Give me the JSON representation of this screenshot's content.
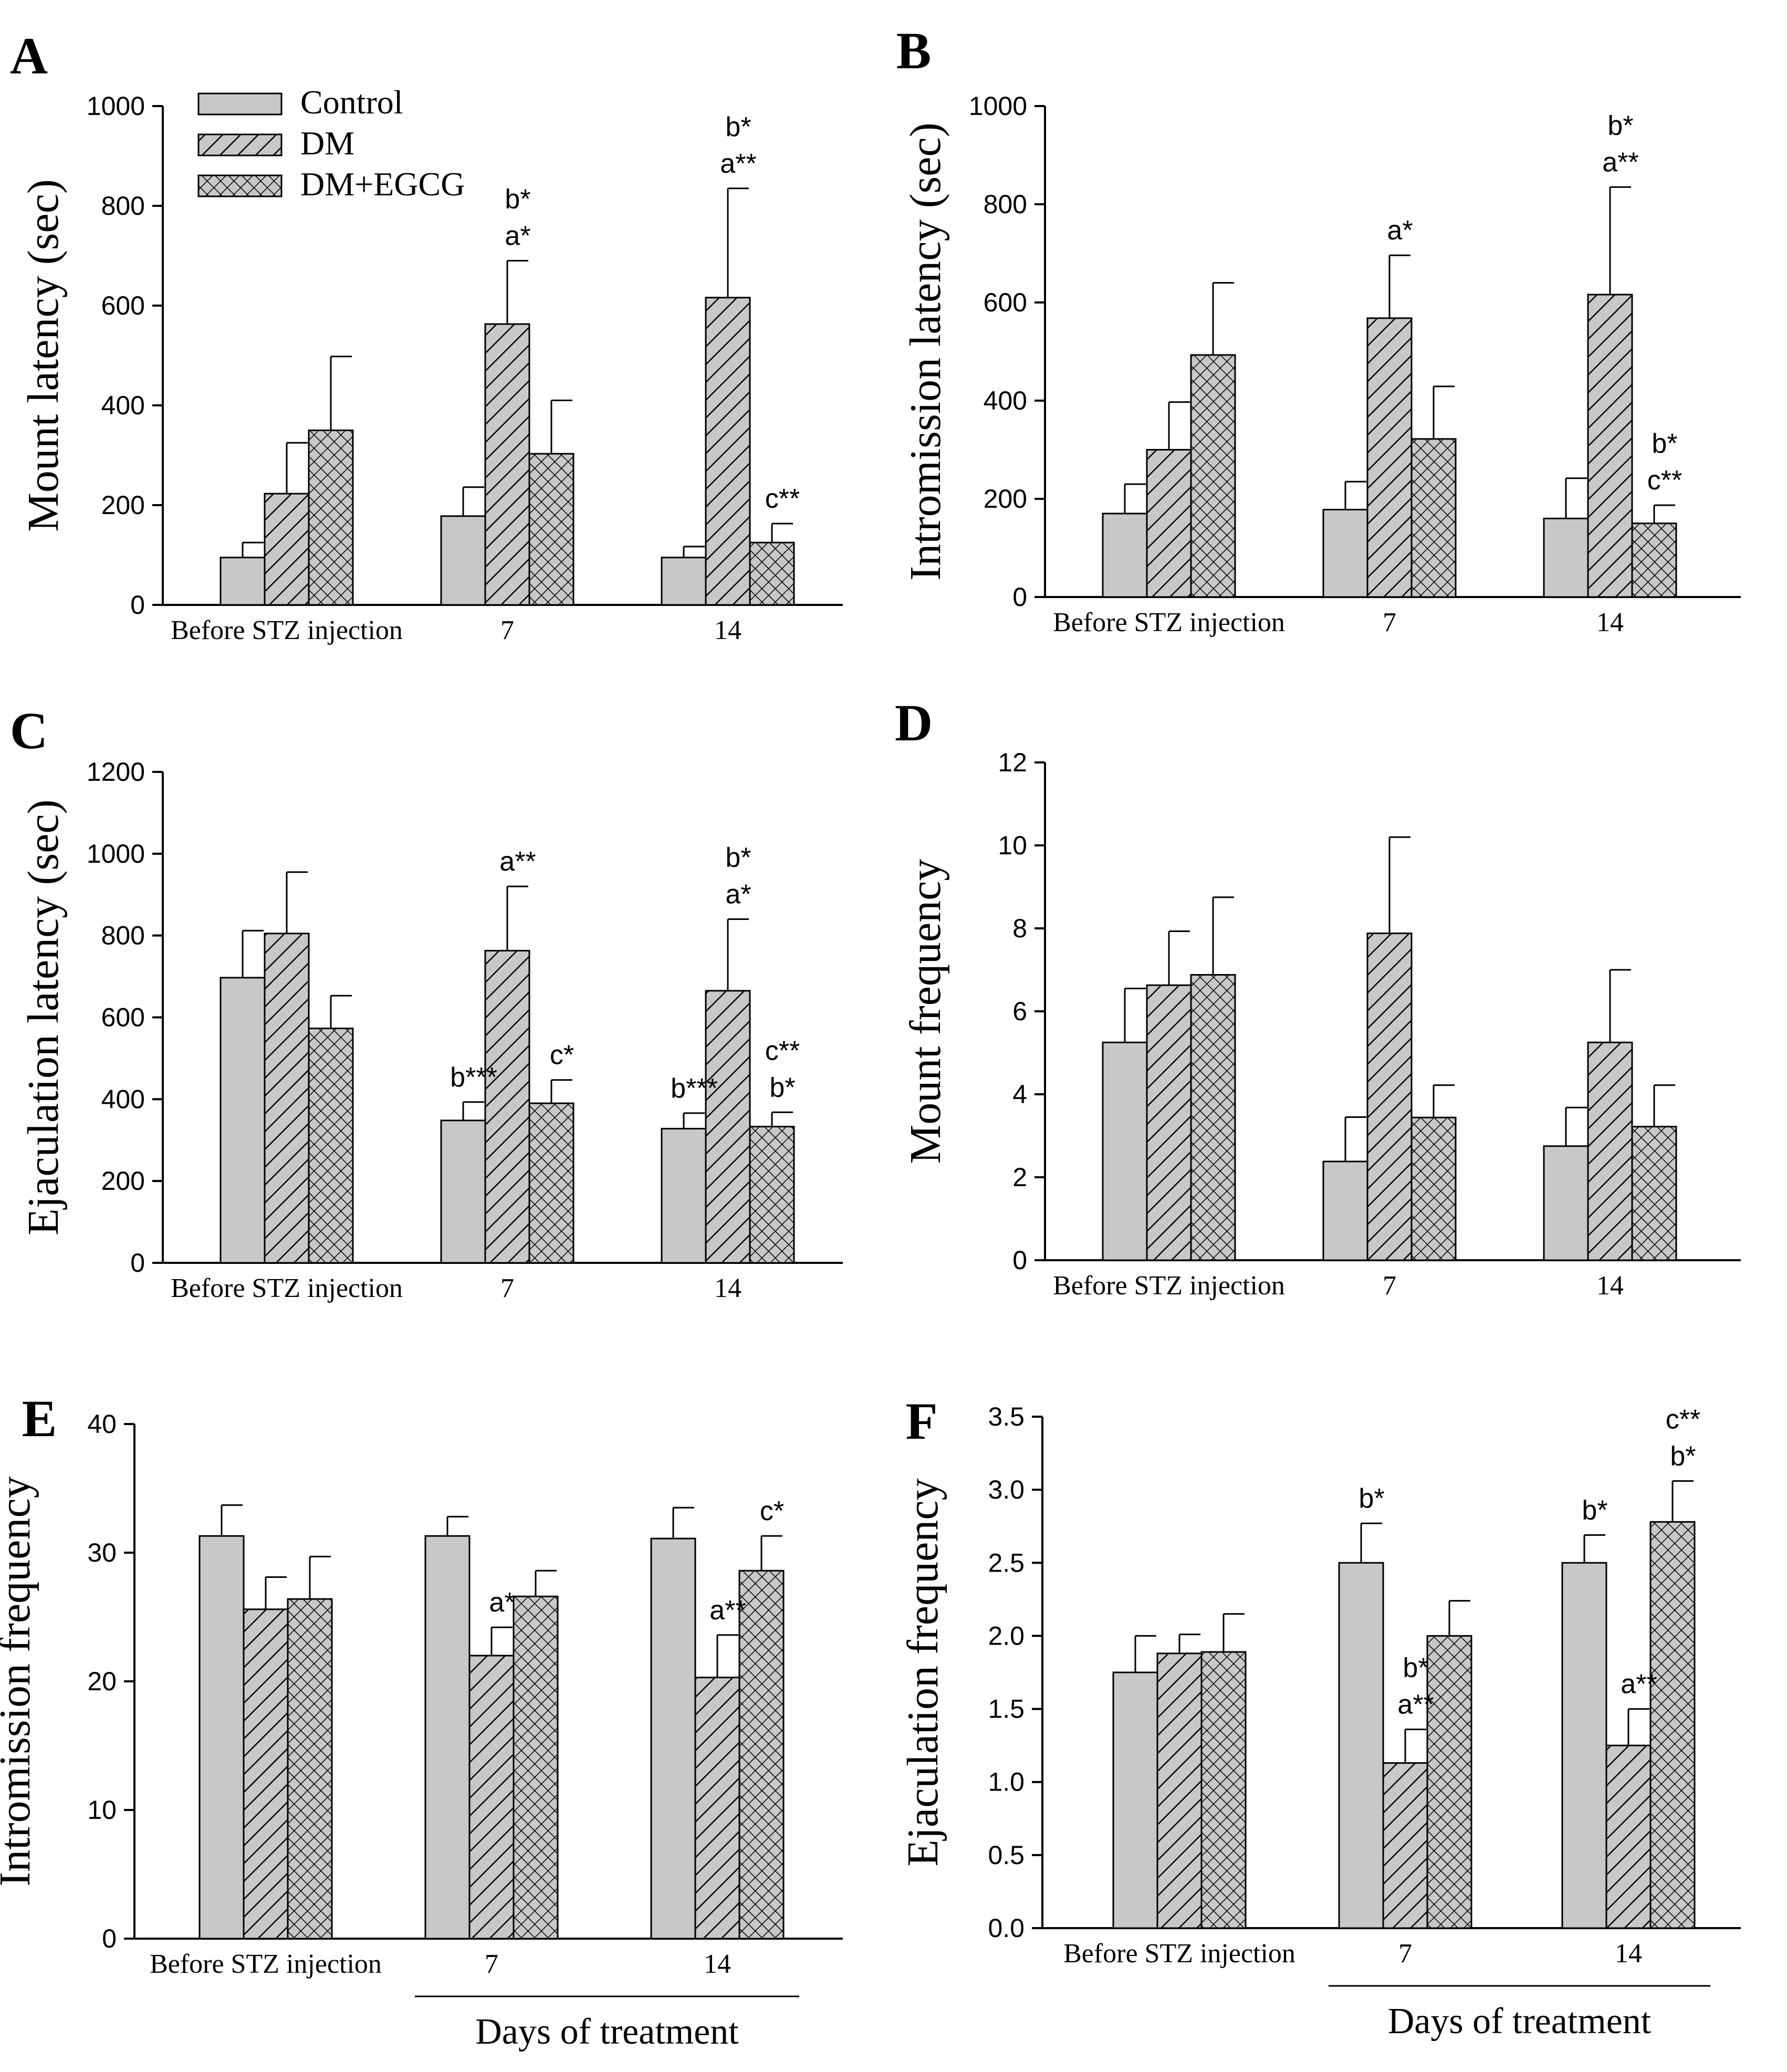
{
  "chart_data": [
    {
      "panel": "A",
      "type": "bar",
      "ylabel": "Mount latency (sec)",
      "xlabel": "",
      "ylim": [
        0,
        1000
      ],
      "yticks": [
        0,
        200,
        400,
        600,
        800,
        1000
      ],
      "categories": [
        "Before STZ injection",
        "7",
        "14"
      ],
      "series": [
        {
          "name": "Control",
          "values": [
            95,
            178,
            95
          ],
          "errors": [
            30,
            58,
            22
          ]
        },
        {
          "name": "DM",
          "values": [
            223,
            563,
            616
          ],
          "errors": [
            102,
            127,
            219
          ]
        },
        {
          "name": "DM+EGCG",
          "values": [
            350,
            303,
            125
          ],
          "errors": [
            148,
            107,
            38
          ]
        }
      ],
      "annotations": [
        {
          "category": 1,
          "series": 1,
          "lines": [
            "b*",
            "a*"
          ]
        },
        {
          "category": 2,
          "series": 1,
          "lines": [
            "b*",
            "a**"
          ]
        },
        {
          "category": 2,
          "series": 2,
          "lines": [
            "c**"
          ]
        }
      ],
      "legend": {
        "position": "top-left",
        "entries": [
          "Control",
          "DM",
          "DM+EGCG"
        ]
      }
    },
    {
      "panel": "B",
      "type": "bar",
      "ylabel": "Intromission latency (sec)",
      "xlabel": "",
      "ylim": [
        0,
        1000
      ],
      "yticks": [
        0,
        200,
        400,
        600,
        800,
        1000
      ],
      "categories": [
        "Before STZ injection",
        "7",
        "14"
      ],
      "series": [
        {
          "name": "Control",
          "values": [
            170,
            178,
            160
          ],
          "errors": [
            60,
            57,
            82
          ]
        },
        {
          "name": "DM",
          "values": [
            300,
            568,
            616
          ],
          "errors": [
            97,
            128,
            219
          ]
        },
        {
          "name": "DM+EGCG",
          "values": [
            493,
            322,
            150
          ],
          "errors": [
            147,
            107,
            37
          ]
        }
      ],
      "annotations": [
        {
          "category": 1,
          "series": 1,
          "lines": [
            "a*"
          ]
        },
        {
          "category": 2,
          "series": 1,
          "lines": [
            "b*",
            "a**"
          ]
        },
        {
          "category": 2,
          "series": 2,
          "lines": [
            "b*",
            "c**"
          ]
        }
      ]
    },
    {
      "panel": "C",
      "type": "bar",
      "ylabel": "Ejaculation latency (sec)",
      "xlabel": "",
      "ylim": [
        0,
        1200
      ],
      "yticks": [
        0,
        200,
        400,
        600,
        800,
        1000,
        1200
      ],
      "categories": [
        "Before STZ injection",
        "7",
        "14"
      ],
      "series": [
        {
          "name": "Control",
          "values": [
            697,
            348,
            328
          ],
          "errors": [
            115,
            45,
            38
          ]
        },
        {
          "name": "DM",
          "values": [
            805,
            763,
            665
          ],
          "errors": [
            150,
            157,
            175
          ]
        },
        {
          "name": "DM+EGCG",
          "values": [
            573,
            390,
            333
          ],
          "errors": [
            80,
            57,
            35
          ]
        }
      ],
      "annotations": [
        {
          "category": 1,
          "series": 0,
          "lines": [
            "b***"
          ]
        },
        {
          "category": 1,
          "series": 1,
          "lines": [
            "a**"
          ]
        },
        {
          "category": 1,
          "series": 2,
          "lines": [
            "c*"
          ]
        },
        {
          "category": 2,
          "series": 0,
          "lines": [
            "b***"
          ]
        },
        {
          "category": 2,
          "series": 1,
          "lines": [
            "b*",
            "a*"
          ]
        },
        {
          "category": 2,
          "series": 2,
          "lines": [
            "c**",
            "b*"
          ]
        }
      ]
    },
    {
      "panel": "D",
      "type": "bar",
      "ylabel": "Mount frequency",
      "xlabel": "",
      "ylim": [
        0,
        12
      ],
      "yticks": [
        0,
        2,
        4,
        6,
        8,
        10,
        12
      ],
      "categories": [
        "Before STZ injection",
        "7",
        "14"
      ],
      "series": [
        {
          "name": "Control",
          "values": [
            5.25,
            2.38,
            2.75
          ],
          "errors": [
            1.3,
            1.07,
            0.93
          ]
        },
        {
          "name": "DM",
          "values": [
            6.63,
            7.88,
            5.25
          ],
          "errors": [
            1.3,
            2.32,
            1.75
          ]
        },
        {
          "name": "DM+EGCG",
          "values": [
            6.88,
            3.44,
            3.22
          ],
          "errors": [
            1.87,
            0.78,
            1.0
          ]
        }
      ],
      "annotations": []
    },
    {
      "panel": "E",
      "type": "bar",
      "ylabel": "Intromission frequency",
      "xlabel": "Days of treatment",
      "ylim": [
        0,
        40
      ],
      "yticks": [
        0,
        10,
        20,
        30,
        40
      ],
      "categories": [
        "Before STZ injection",
        "7",
        "14"
      ],
      "series": [
        {
          "name": "Control",
          "values": [
            31.3,
            31.3,
            31.1
          ],
          "errors": [
            2.4,
            1.5,
            2.4
          ]
        },
        {
          "name": "DM",
          "values": [
            25.6,
            22.0,
            20.3
          ],
          "errors": [
            2.5,
            2.2,
            3.3
          ]
        },
        {
          "name": "DM+EGCG",
          "values": [
            26.4,
            26.6,
            28.6
          ],
          "errors": [
            3.3,
            2.0,
            2.7
          ]
        }
      ],
      "annotations": [
        {
          "category": 1,
          "series": 1,
          "lines": [
            "a*"
          ]
        },
        {
          "category": 2,
          "series": 1,
          "lines": [
            "a**"
          ]
        },
        {
          "category": 2,
          "series": 2,
          "lines": [
            "c*"
          ]
        }
      ]
    },
    {
      "panel": "F",
      "type": "bar",
      "ylabel": "Ejaculation frequency",
      "xlabel": "Days of treatment",
      "ylim": [
        0,
        3.5
      ],
      "yticks": [
        "0.0",
        "0.5",
        "1.0",
        "1.5",
        "2.0",
        "2.5",
        "3.0",
        "3.5"
      ],
      "categories": [
        "Before STZ injection",
        "7",
        "14"
      ],
      "series": [
        {
          "name": "Control",
          "values": [
            1.75,
            2.5,
            2.5
          ],
          "errors": [
            0.25,
            0.27,
            0.19
          ]
        },
        {
          "name": "DM",
          "values": [
            1.88,
            1.13,
            1.25
          ],
          "errors": [
            0.13,
            0.23,
            0.25
          ]
        },
        {
          "name": "DM+EGCG",
          "values": [
            1.89,
            2.0,
            2.78
          ],
          "errors": [
            0.26,
            0.24,
            0.28
          ]
        }
      ],
      "annotations": [
        {
          "category": 1,
          "series": 0,
          "lines": [
            "b*"
          ]
        },
        {
          "category": 1,
          "series": 1,
          "lines": [
            "b*",
            "a**"
          ]
        },
        {
          "category": 2,
          "series": 0,
          "lines": [
            "b*"
          ]
        },
        {
          "category": 2,
          "series": 1,
          "lines": [
            "a**"
          ]
        },
        {
          "category": 2,
          "series": 2,
          "lines": [
            "c**",
            "b*"
          ]
        }
      ]
    }
  ],
  "colors": {
    "control_fill": "#c8c8c8",
    "dm_fill": "#c8c8c8",
    "egcg_fill": "#c8c8c8",
    "stroke": "#000000"
  }
}
